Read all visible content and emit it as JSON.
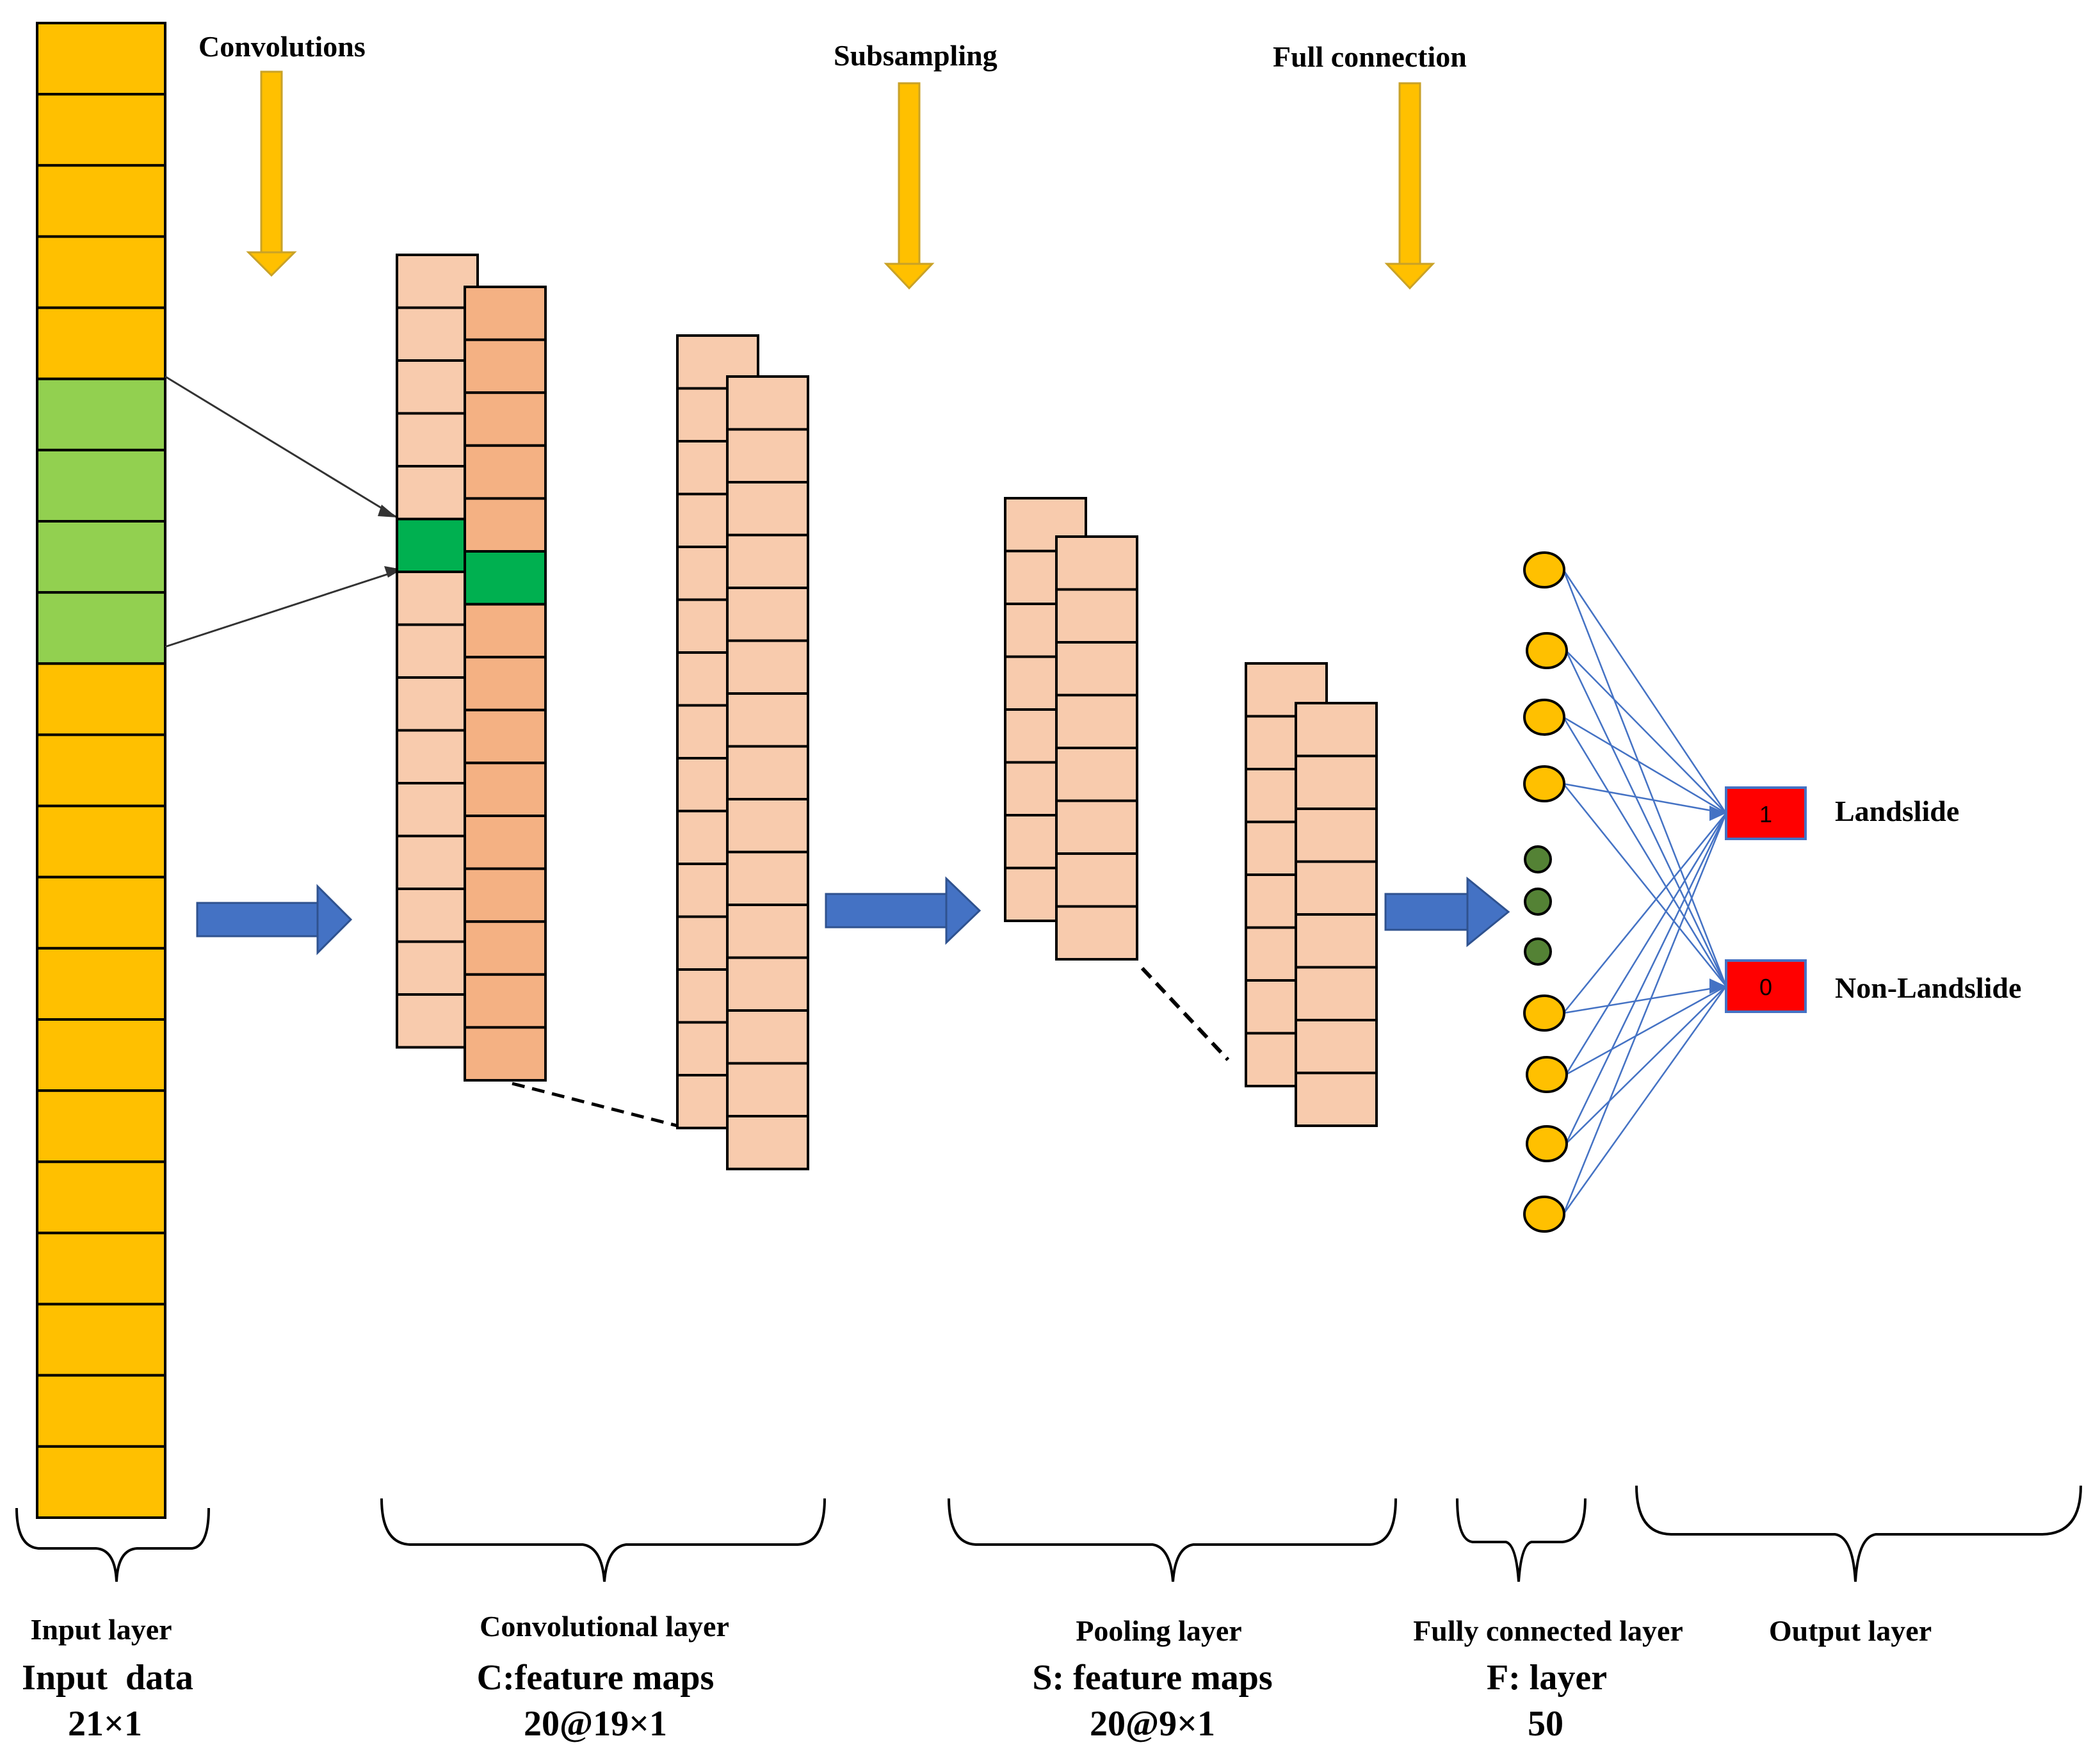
{
  "top_labels": {
    "convolutions": "Convolutions",
    "subsampling": "Subsampling",
    "full_connection": "Full connection"
  },
  "outputs": {
    "landslide_value": "1",
    "landslide_label": "Landslide",
    "non_landslide_value": "0",
    "non_landslide_label": "Non-Landslide"
  },
  "bottom": {
    "input": {
      "title": "Input layer",
      "line1": "Input  data",
      "line2": "21×1"
    },
    "conv": {
      "title": "Convolutional layer",
      "line1": "C:feature maps",
      "line2": "20@19×1"
    },
    "pool": {
      "title": "Pooling layer",
      "line1": "S: feature maps",
      "line2": "20@9×1"
    },
    "fc": {
      "title": "Fully connected layer",
      "line1": "F: layer",
      "line2": "50"
    },
    "output": {
      "title": "Output layer"
    }
  },
  "colors": {
    "input_cell": "#FFC000",
    "input_highlight": "#92D050",
    "conv_front": "#F8CBAD",
    "conv_back": "#F4B183",
    "conv_highlight": "#00B050",
    "neuron": "#FFC000",
    "neuron_dot": "#548235",
    "arrow_gold": "#FFC000",
    "arrow_blue": "#4472C4",
    "connection": "#4472C4",
    "output_box": "#FF0000"
  }
}
